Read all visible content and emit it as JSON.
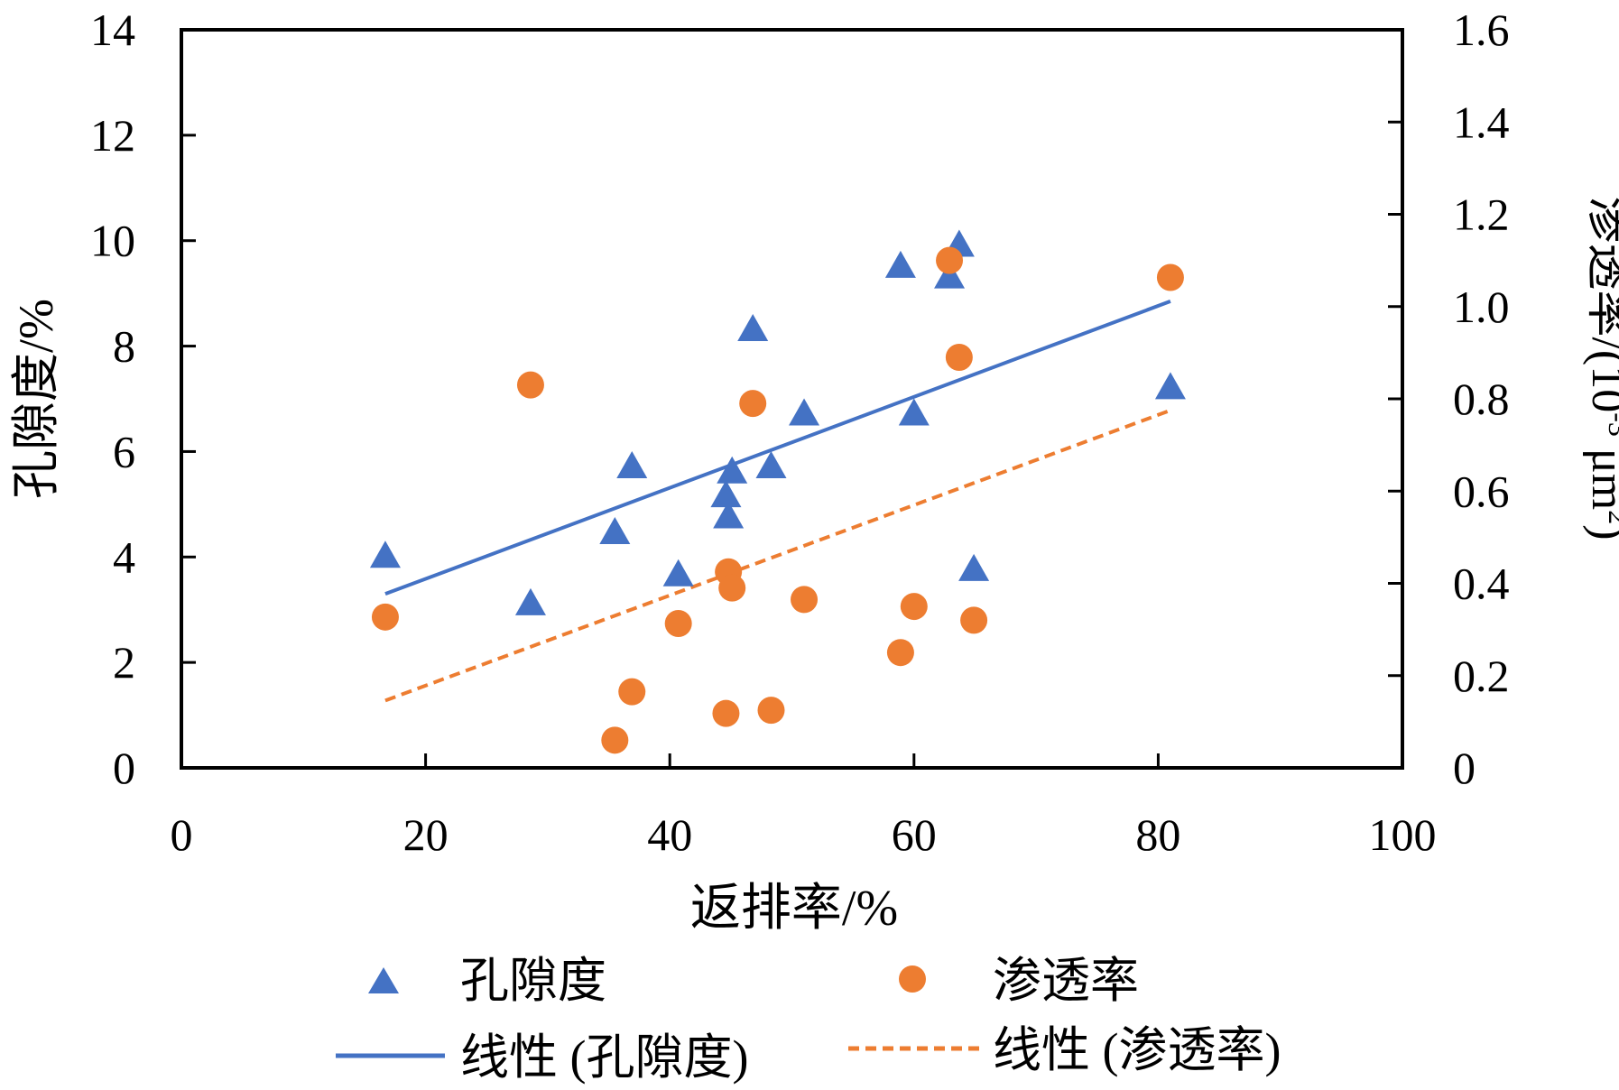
{
  "chart_data": {
    "type": "scatter",
    "xlabel": "返排率/%",
    "ylabel_left": "孔隙度/%",
    "ylabel_right_main": "渗透率/(10",
    "ylabel_right_sup": "-3",
    "ylabel_right_mid": " μm",
    "ylabel_right_sup2": "2",
    "ylabel_right_end": ")",
    "xlim": [
      0,
      100
    ],
    "ylim_left": [
      0,
      14
    ],
    "ylim_right": [
      0,
      1.6
    ],
    "x_ticks": [
      "0",
      "20",
      "40",
      "60",
      "80",
      "100"
    ],
    "y_left_ticks": [
      "0",
      "2",
      "4",
      "6",
      "8",
      "10",
      "12",
      "14"
    ],
    "y_right_ticks": [
      "0",
      "0.2",
      "0.4",
      "0.6",
      "0.8",
      "1.0",
      "1.2",
      "1.4",
      "1.6"
    ],
    "grid": false,
    "legend_position": "bottom",
    "series": [
      {
        "name": "孔隙度",
        "axis": "left",
        "marker": "triangle",
        "color": "#4472C4",
        "points": [
          [
            16.7,
            4.0
          ],
          [
            28.6,
            3.1
          ],
          [
            35.5,
            4.45
          ],
          [
            36.9,
            5.7
          ],
          [
            40.7,
            3.65
          ],
          [
            44.6,
            5.15
          ],
          [
            44.8,
            4.75
          ],
          [
            45.1,
            5.6
          ],
          [
            46.8,
            8.3
          ],
          [
            48.3,
            5.7
          ],
          [
            51.0,
            6.7
          ],
          [
            58.9,
            9.5
          ],
          [
            60.0,
            6.7
          ],
          [
            62.9,
            9.3
          ],
          [
            63.7,
            9.9
          ],
          [
            64.9,
            3.75
          ],
          [
            81.0,
            7.2
          ]
        ]
      },
      {
        "name": "渗透率",
        "axis": "right",
        "marker": "circle",
        "color": "#ED7D31",
        "points": [
          [
            16.7,
            0.327
          ],
          [
            28.6,
            0.83
          ],
          [
            35.5,
            0.06
          ],
          [
            36.9,
            0.165
          ],
          [
            40.7,
            0.313
          ],
          [
            44.6,
            0.118
          ],
          [
            44.8,
            0.425
          ],
          [
            45.1,
            0.39
          ],
          [
            46.8,
            0.79
          ],
          [
            48.3,
            0.125
          ],
          [
            51.0,
            0.365
          ],
          [
            58.9,
            0.25
          ],
          [
            60.0,
            0.35
          ],
          [
            62.9,
            1.1
          ],
          [
            63.7,
            0.89
          ],
          [
            64.9,
            0.32
          ],
          [
            81.0,
            1.063
          ]
        ]
      }
    ],
    "trendlines": [
      {
        "name": "线性 (孔隙度)",
        "axis": "left",
        "style": "solid",
        "color": "#4472C4",
        "x": [
          16.7,
          81.0
        ],
        "y": [
          3.3,
          8.85
        ]
      },
      {
        "name": "线性 (渗透率)",
        "axis": "right",
        "style": "dashed",
        "color": "#ED7D31",
        "x": [
          16.7,
          81.0
        ],
        "y": [
          0.146,
          0.775
        ]
      }
    ]
  }
}
